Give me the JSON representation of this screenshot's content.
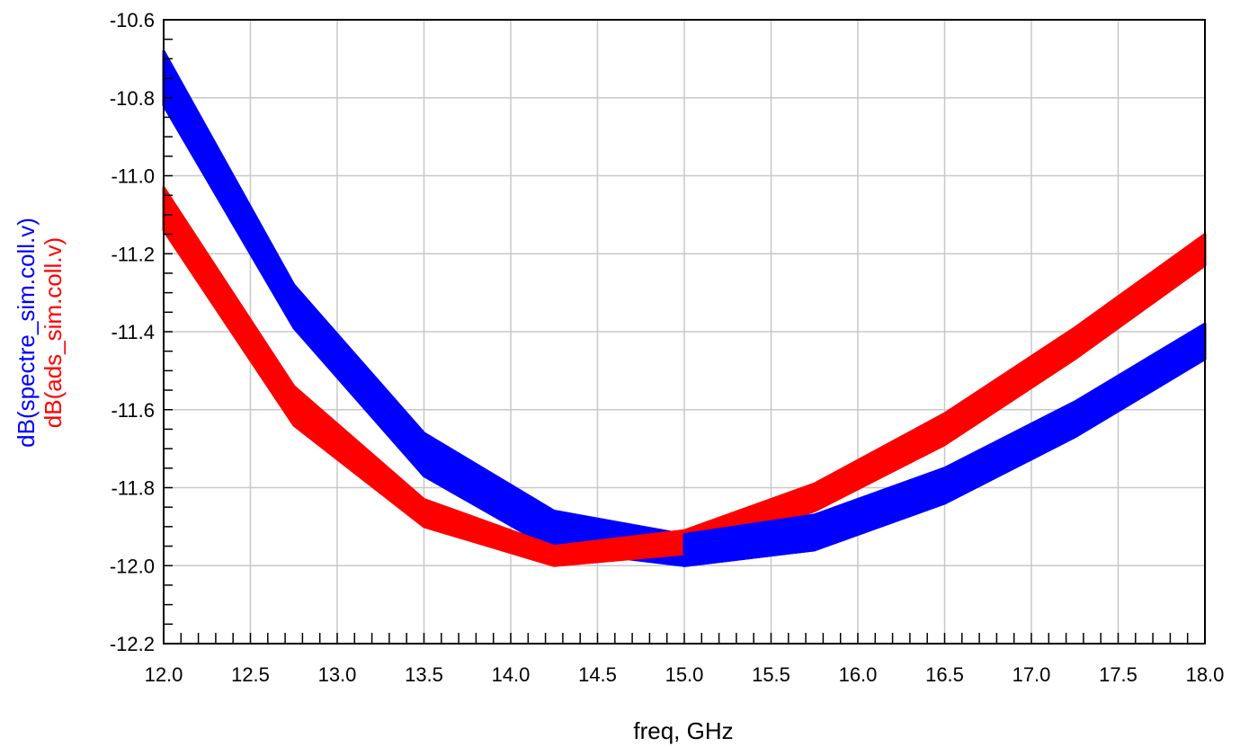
{
  "chart_data": {
    "type": "line",
    "xlabel": "freq, GHz",
    "ylabels": [
      {
        "text": "dB(spectre_sim.coll.v)",
        "color": "#0000ff"
      },
      {
        "text": "dB(ads_sim.coll.v)",
        "color": "#ff0000"
      }
    ],
    "xlim": [
      12.0,
      18.0
    ],
    "ylim": [
      -12.2,
      -10.6
    ],
    "x_ticks": [
      "12.0",
      "12.5",
      "13.0",
      "13.5",
      "14.0",
      "14.5",
      "15.0",
      "15.5",
      "16.0",
      "16.5",
      "17.0",
      "17.5",
      "18.0"
    ],
    "y_ticks": [
      "-10.6",
      "-10.8",
      "-11.0",
      "-11.2",
      "-11.4",
      "-11.6",
      "-11.8",
      "-12.0",
      "-12.2"
    ],
    "grid": true,
    "series": [
      {
        "name": "dB(spectre_sim.coll.v)",
        "color": "#0000ff",
        "x": [
          12.0,
          12.75,
          13.5,
          14.25,
          15.0,
          15.75,
          16.5,
          17.25,
          18.0
        ],
        "upper": [
          -10.68,
          -11.28,
          -11.66,
          -11.86,
          -11.92,
          -11.87,
          -11.75,
          -11.58,
          -11.38
        ],
        "lower": [
          -10.82,
          -11.39,
          -11.77,
          -11.96,
          -12.0,
          -11.96,
          -11.84,
          -11.67,
          -11.47
        ]
      },
      {
        "name": "dB(ads_sim.coll.v)",
        "color": "#ff0000",
        "x": [
          12.0,
          12.75,
          13.5,
          14.25,
          15.0,
          15.75,
          16.5,
          17.25,
          18.0
        ],
        "upper": [
          -11.03,
          -11.54,
          -11.83,
          -11.95,
          -11.91,
          -11.79,
          -11.61,
          -11.39,
          -11.15
        ],
        "lower": [
          -11.14,
          -11.64,
          -11.9,
          -12.0,
          -11.97,
          -11.86,
          -11.69,
          -11.47,
          -11.23
        ]
      }
    ]
  }
}
